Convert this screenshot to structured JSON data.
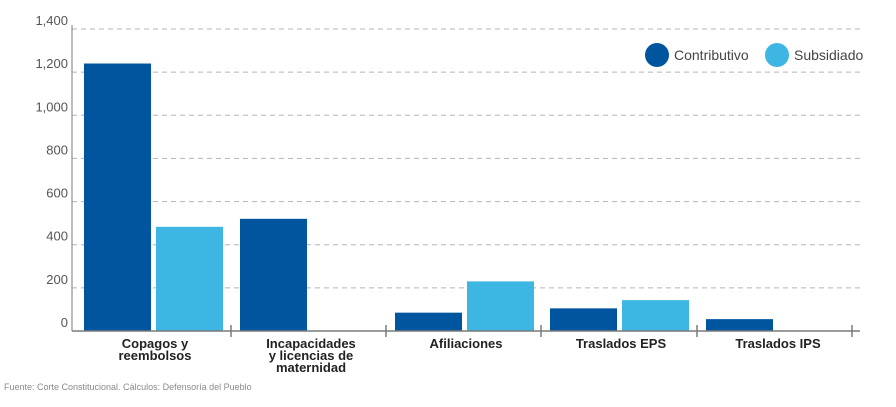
{
  "chart_data": {
    "type": "bar",
    "title": "",
    "xlabel": "",
    "ylabel": "",
    "categories": [
      [
        "Copagos y",
        "reembolsos"
      ],
      [
        "Incapacidades",
        "y licencias de",
        "maternidad"
      ],
      [
        "Afiliaciones"
      ],
      [
        "Traslados EPS"
      ],
      [
        "Traslados IPS"
      ]
    ],
    "series": [
      {
        "name": "Contributivo",
        "color": "#00559f",
        "values": [
          1240,
          520,
          85,
          105,
          55
        ]
      },
      {
        "name": "Subsidiado",
        "color": "#3db6e3",
        "values": [
          483,
          0,
          230,
          143,
          0
        ]
      }
    ],
    "ylim": [
      0,
      1400
    ],
    "yticks": [
      "0",
      "200",
      "400",
      "600",
      "800",
      "1,000",
      "1,200",
      "1,400"
    ],
    "ytick_values": [
      0,
      200,
      400,
      600,
      800,
      1000,
      1200,
      1400
    ],
    "grid": "dashed horizontal",
    "legend_position": "top-right"
  },
  "source_note": "Fuente: Corte Constitucional. Cálculos: Defensoría del Pueblo"
}
